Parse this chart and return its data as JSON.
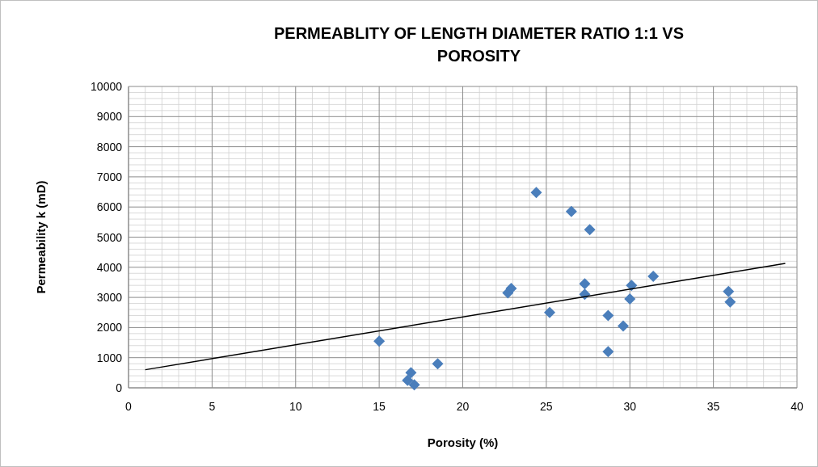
{
  "chart_data": {
    "type": "scatter",
    "title": "PERMEABLITY OF LENGTH DIAMETER RATIO 1:1 VS POROSITY",
    "xlabel": "Porosity (%)",
    "ylabel": "Permeability k (mD)",
    "xlim": [
      0,
      40
    ],
    "xticks": [
      0,
      5,
      10,
      15,
      20,
      25,
      30,
      35,
      40
    ],
    "ylim": [
      0,
      10000
    ],
    "yticks": [
      0,
      1000,
      2000,
      3000,
      4000,
      5000,
      6000,
      7000,
      8000,
      9000,
      10000
    ],
    "grid": true,
    "series": [
      {
        "marker": "diamond",
        "color": "#4a7ebb",
        "x": [
          15.0,
          16.7,
          16.9,
          17.1,
          18.5,
          22.7,
          22.9,
          24.4,
          25.2,
          26.5,
          27.3,
          27.3,
          27.6,
          28.7,
          28.7,
          29.6,
          30.0,
          30.1,
          31.4,
          35.9,
          36.0
        ],
        "values": [
          1550,
          250,
          500,
          100,
          800,
          3150,
          3300,
          6480,
          2500,
          5850,
          3450,
          3100,
          5250,
          2400,
          1200,
          2050,
          2950,
          3400,
          3700,
          3200,
          2850
        ]
      },
      {
        "type": "line",
        "marker": "none",
        "color": "#000000",
        "x": [
          1,
          39.3
        ],
        "values": [
          600,
          4130
        ]
      }
    ]
  }
}
